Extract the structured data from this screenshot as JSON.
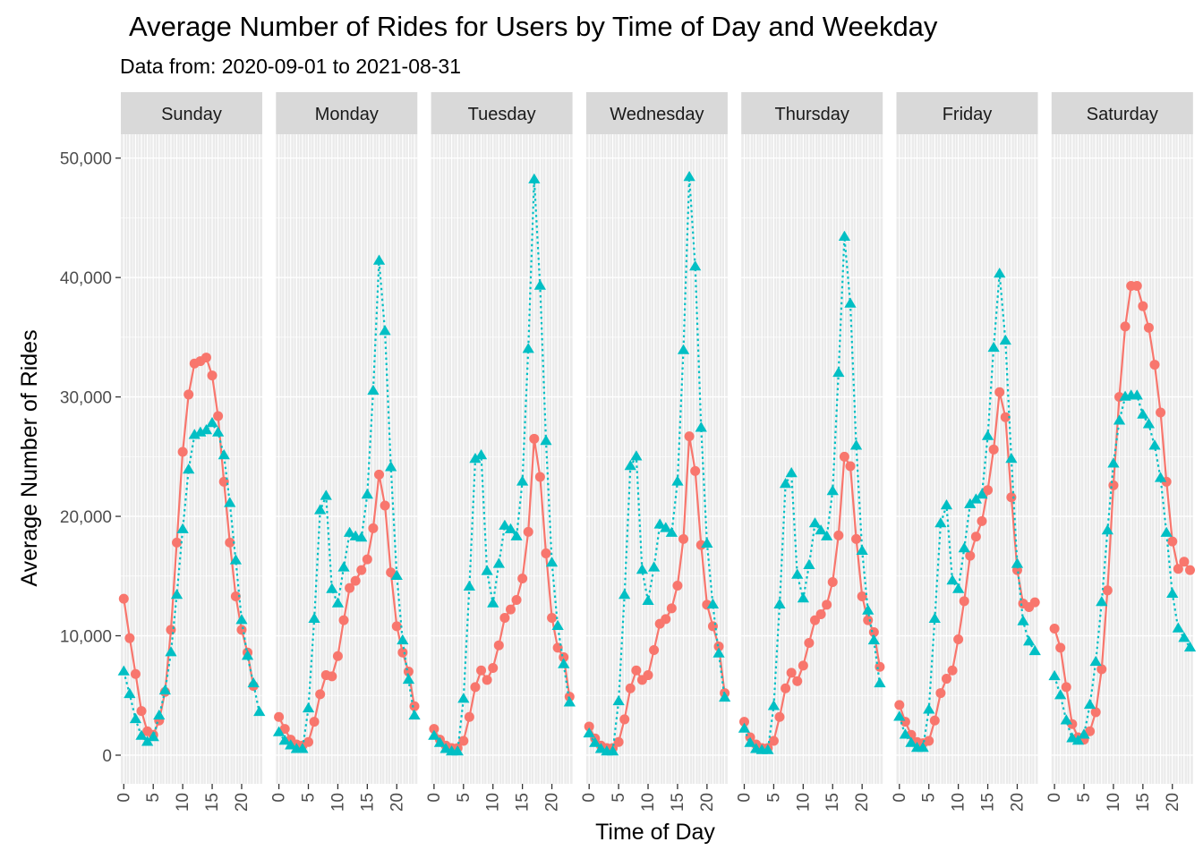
{
  "chart_data": {
    "type": "line",
    "title": "Average Number of Rides for Users by Time of Day and Weekday",
    "subtitle": "Data from: 2020-09-01 to 2021-08-31",
    "xlabel": "Time of Day",
    "ylabel": "Average Number of Rides",
    "xlim": [
      -0.5,
      23.5
    ],
    "ylim": [
      -2400,
      52000
    ],
    "x_ticks": [
      0,
      5,
      10,
      15,
      20
    ],
    "x_tick_labels": [
      "0",
      "5",
      "10",
      "15",
      "20"
    ],
    "y_ticks": [
      0,
      10000,
      20000,
      30000,
      40000,
      50000
    ],
    "y_tick_labels": [
      "0",
      "10,000",
      "20,000",
      "30,000",
      "40,000",
      "50,000"
    ],
    "grid": true,
    "legend": "none",
    "hours": [
      0,
      1,
      2,
      3,
      4,
      5,
      6,
      7,
      8,
      9,
      10,
      11,
      12,
      13,
      14,
      15,
      16,
      17,
      18,
      19,
      20,
      21,
      22,
      23
    ],
    "series_styles": [
      {
        "color": "#F8766D",
        "line": "solid",
        "marker": "circle"
      },
      {
        "color": "#00BFC4",
        "line": "dotted",
        "marker": "triangle"
      }
    ],
    "panels": [
      {
        "label": "Sunday",
        "series": [
          {
            "values": [
              13100,
              9800,
              6800,
              3700,
              2000,
              1700,
              2900,
              5300,
              10500,
              17800,
              25400,
              30200,
              32800,
              33000,
              33300,
              31800,
              28400,
              22900,
              17800,
              13300,
              10500,
              8600,
              5800,
              null
            ]
          },
          {
            "values": [
              7000,
              5100,
              3000,
              1600,
              1100,
              1500,
              3300,
              5400,
              8600,
              13400,
              18900,
              23900,
              26800,
              27000,
              27200,
              27800,
              27000,
              25100,
              21100,
              16300,
              11300,
              8300,
              6000,
              3600
            ]
          }
        ]
      },
      {
        "label": "Monday",
        "series": [
          {
            "values": [
              3200,
              2200,
              1300,
              900,
              800,
              1100,
              2800,
              5100,
              6700,
              6600,
              8300,
              11300,
              14000,
              14600,
              15500,
              16400,
              19000,
              23500,
              20900,
              15300,
              10800,
              8600,
              7000,
              4100
            ]
          },
          {
            "values": [
              1900,
              1200,
              800,
              500,
              500,
              3900,
              11400,
              20500,
              21700,
              13900,
              12700,
              15700,
              18600,
              18300,
              18200,
              21800,
              30500,
              41400,
              35500,
              24100,
              15000,
              9600,
              6300,
              3300
            ]
          }
        ]
      },
      {
        "label": "Tuesday",
        "series": [
          {
            "values": [
              2200,
              1300,
              800,
              600,
              600,
              1200,
              3200,
              5700,
              7100,
              6300,
              7300,
              9200,
              11500,
              12200,
              13000,
              14800,
              18700,
              26500,
              23300,
              16900,
              11500,
              9000,
              8200,
              4900
            ]
          },
          {
            "values": [
              1600,
              1000,
              500,
              300,
              300,
              4700,
              14100,
              24800,
              25100,
              15400,
              12700,
              16000,
              19200,
              18900,
              18300,
              22900,
              34000,
              48200,
              39300,
              26300,
              16100,
              10800,
              7600,
              4400
            ]
          }
        ]
      },
      {
        "label": "Wednesday",
        "series": [
          {
            "values": [
              2400,
              1400,
              800,
              600,
              600,
              1100,
              3000,
              5600,
              7100,
              6300,
              6700,
              8800,
              11000,
              11400,
              12300,
              14200,
              18100,
              26700,
              23800,
              17600,
              12600,
              10800,
              9100,
              5200
            ]
          },
          {
            "values": [
              1800,
              1000,
              500,
              300,
              300,
              4500,
              13400,
              24200,
              25000,
              15500,
              12900,
              15700,
              19300,
              19000,
              18600,
              22900,
              33900,
              48400,
              40900,
              27400,
              17700,
              12600,
              8500,
              4800
            ]
          }
        ]
      },
      {
        "label": "Thursday",
        "series": [
          {
            "values": [
              2800,
              1500,
              900,
              600,
              600,
              1200,
              3200,
              5600,
              6900,
              6200,
              7500,
              9400,
              11300,
              11800,
              12600,
              14500,
              18400,
              25000,
              24200,
              18100,
              13300,
              11300,
              10300,
              7400
            ]
          },
          {
            "values": [
              2200,
              1000,
              500,
              400,
              400,
              4100,
              12600,
              22700,
              23600,
              15100,
              13100,
              15900,
              19400,
              18800,
              18300,
              22100,
              32000,
              43400,
              37800,
              25900,
              17100,
              12100,
              9600,
              6000
            ]
          }
        ]
      },
      {
        "label": "Friday",
        "series": [
          {
            "values": [
              4200,
              2800,
              1700,
              1100,
              1000,
              1200,
              2900,
              5200,
              6400,
              7100,
              9700,
              12900,
              16700,
              18300,
              19600,
              22200,
              25600,
              30400,
              28300,
              21600,
              15500,
              12700,
              12400,
              12800
            ]
          },
          {
            "values": [
              3200,
              1700,
              1000,
              600,
              600,
              3800,
              11400,
              19400,
              20900,
              14600,
              13900,
              17300,
              21000,
              21400,
              21800,
              26700,
              34100,
              40300,
              34700,
              24800,
              16000,
              11200,
              9500,
              8700
            ]
          }
        ]
      },
      {
        "label": "Saturday",
        "series": [
          {
            "values": [
              10600,
              9000,
              5700,
              2600,
              1500,
              1300,
              2000,
              3600,
              7200,
              13800,
              22600,
              30000,
              35900,
              39300,
              39300,
              37600,
              35800,
              32700,
              28700,
              22900,
              17900,
              15600,
              16200,
              15500
            ]
          },
          {
            "values": [
              6600,
              5000,
              2900,
              1400,
              1200,
              1700,
              4200,
              7800,
              12800,
              18800,
              24400,
              28000,
              30000,
              30100,
              30100,
              28500,
              27700,
              25900,
              23200,
              18600,
              13500,
              10600,
              9800,
              9000
            ]
          }
        ]
      }
    ]
  }
}
